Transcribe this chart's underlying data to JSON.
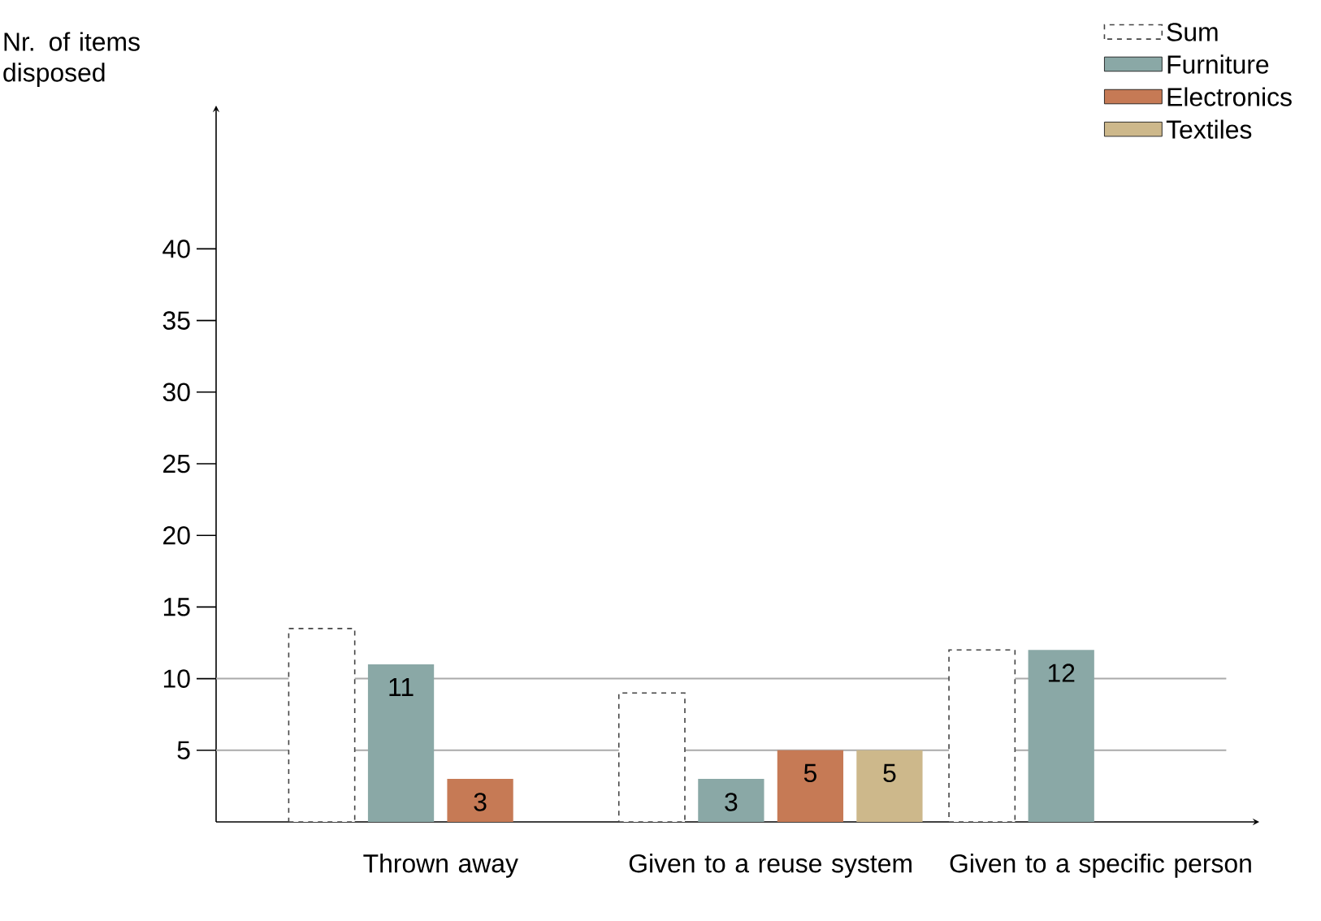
{
  "chart_data": {
    "type": "bar",
    "ylabel": "Nr. of items disposed",
    "categories": [
      "Thrown away",
      "Given to a reuse system",
      "Given to a specific person"
    ],
    "series": [
      {
        "name": "Sum",
        "color": "#444444",
        "line_style": "dashed",
        "values": [
          13.5,
          9,
          12
        ]
      },
      {
        "name": "Furniture",
        "color": "#8aa8a6",
        "values": [
          11,
          3,
          12
        ],
        "value_labels": [
          "11",
          "3",
          "12"
        ]
      },
      {
        "name": "Electronics",
        "color": "#c67a55",
        "values": [
          3,
          5,
          null
        ],
        "value_labels": [
          "3",
          "5",
          null
        ]
      },
      {
        "name": "Textiles",
        "color": "#cdb88b",
        "values": [
          null,
          5,
          null
        ],
        "value_labels": [
          null,
          "5",
          null
        ]
      }
    ],
    "ylim": [
      0,
      50
    ],
    "yticks": [
      5,
      10,
      15,
      20,
      25,
      30,
      35,
      40
    ],
    "ref_lines": [
      {
        "axis": "y",
        "value": 5,
        "color": "#aaaaaa"
      },
      {
        "axis": "y",
        "value": 10,
        "color": "#aaaaaa"
      }
    ],
    "legend": "top right"
  }
}
